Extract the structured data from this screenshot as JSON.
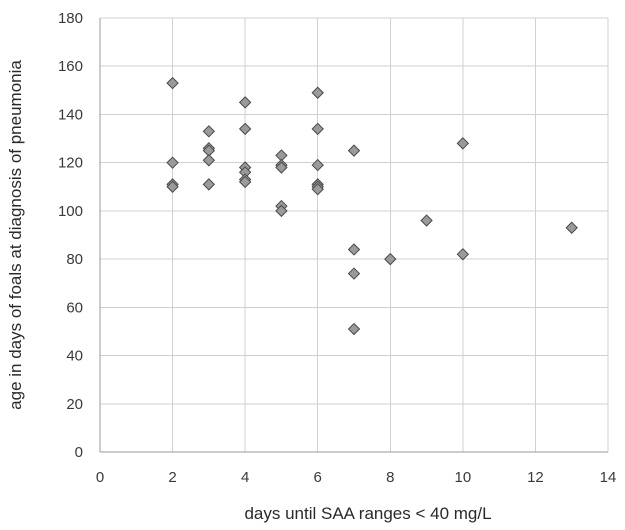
{
  "chart_data": {
    "type": "scatter",
    "title": "",
    "xlabel": "days until SAA ranges < 40 mg/L",
    "ylabel": "age in days of foals at diagnosis of pneumonia",
    "xlim": [
      0,
      14
    ],
    "ylim": [
      0,
      180
    ],
    "xticks": [
      0,
      2,
      4,
      6,
      8,
      10,
      12,
      14
    ],
    "yticks": [
      0,
      20,
      40,
      60,
      80,
      100,
      120,
      140,
      160,
      180
    ],
    "grid": true,
    "legend": "none",
    "marker": "diamond",
    "marker_color": "#9a9a9a",
    "points": [
      {
        "x": 2,
        "y": 153
      },
      {
        "x": 2,
        "y": 120
      },
      {
        "x": 2,
        "y": 111
      },
      {
        "x": 2,
        "y": 110
      },
      {
        "x": 3,
        "y": 133
      },
      {
        "x": 3,
        "y": 126
      },
      {
        "x": 3,
        "y": 125
      },
      {
        "x": 3,
        "y": 121
      },
      {
        "x": 3,
        "y": 111
      },
      {
        "x": 4,
        "y": 145
      },
      {
        "x": 4,
        "y": 134
      },
      {
        "x": 4,
        "y": 118
      },
      {
        "x": 4,
        "y": 116
      },
      {
        "x": 4,
        "y": 113
      },
      {
        "x": 4,
        "y": 112
      },
      {
        "x": 5,
        "y": 123
      },
      {
        "x": 5,
        "y": 119
      },
      {
        "x": 5,
        "y": 118
      },
      {
        "x": 5,
        "y": 102
      },
      {
        "x": 5,
        "y": 100
      },
      {
        "x": 6,
        "y": 149
      },
      {
        "x": 6,
        "y": 134
      },
      {
        "x": 6,
        "y": 119
      },
      {
        "x": 6,
        "y": 111
      },
      {
        "x": 6,
        "y": 110
      },
      {
        "x": 6,
        "y": 109
      },
      {
        "x": 7,
        "y": 125
      },
      {
        "x": 7,
        "y": 84
      },
      {
        "x": 7,
        "y": 74
      },
      {
        "x": 7,
        "y": 51
      },
      {
        "x": 8,
        "y": 80
      },
      {
        "x": 9,
        "y": 96
      },
      {
        "x": 10,
        "y": 128
      },
      {
        "x": 10,
        "y": 82
      },
      {
        "x": 13,
        "y": 93
      }
    ]
  }
}
